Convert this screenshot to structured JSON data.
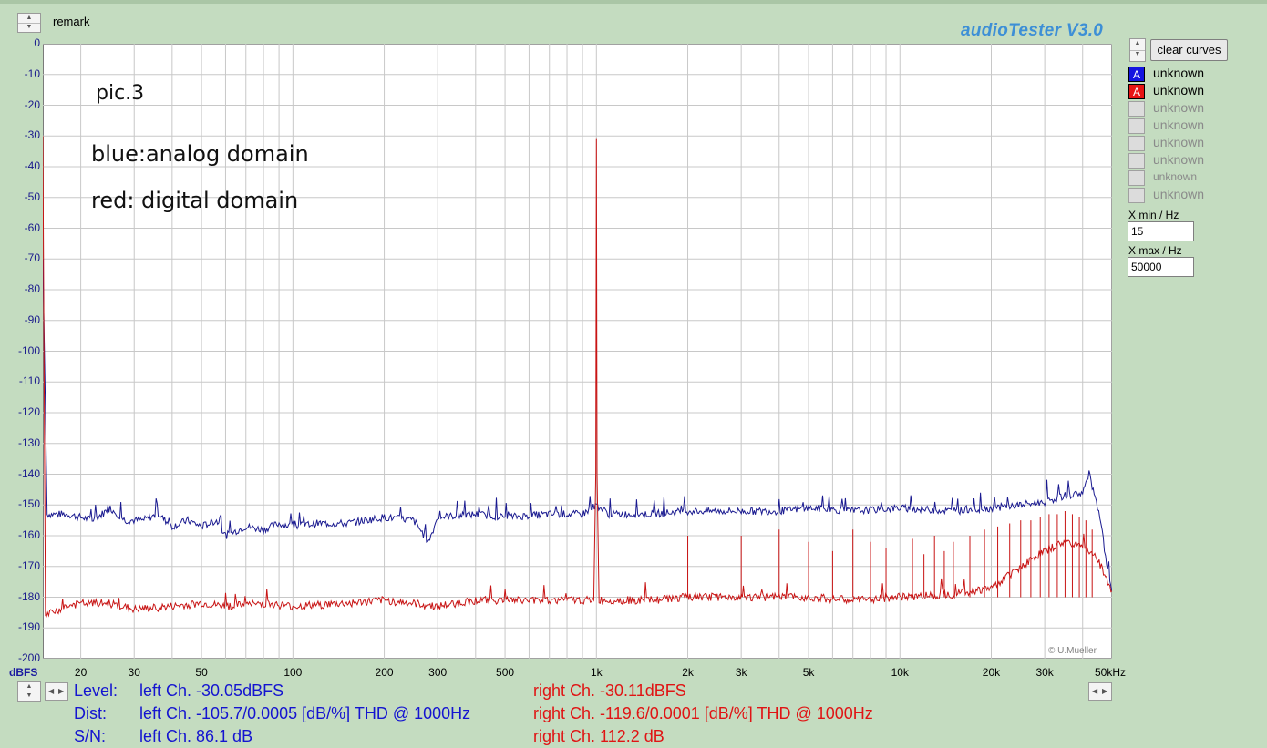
{
  "header": {
    "remark_label": "remark",
    "app_title": "audioTester  V3.0"
  },
  "annotations": {
    "line1": "pic.3",
    "line2": "blue:analog domain",
    "line3": "red: digital domain"
  },
  "right_panel": {
    "clear_button": "clear curves",
    "curves": [
      {
        "label": "unknown",
        "marker": "A",
        "color": "#1414e0",
        "active": true
      },
      {
        "label": "unknown",
        "marker": "A",
        "color": "#e81414",
        "active": true
      },
      {
        "label": "unknown",
        "marker": "",
        "active": false
      },
      {
        "label": "unknown",
        "marker": "",
        "active": false
      },
      {
        "label": "unknown",
        "marker": "",
        "active": false
      },
      {
        "label": "unknown",
        "marker": "",
        "active": false
      },
      {
        "label": "unknown",
        "marker": "",
        "active": false
      },
      {
        "label": "unknown",
        "marker": "",
        "active": false
      }
    ],
    "xmin_label": "X min / Hz",
    "xmin_value": "15",
    "xmax_label": "X max / Hz",
    "xmax_value": "50000"
  },
  "axes": {
    "y_unit": "dBFS",
    "x_unit": "50kHz",
    "copyright": "© U.Mueller",
    "y_ticks": [
      0,
      -10,
      -20,
      -30,
      -40,
      -50,
      -60,
      -70,
      -80,
      -90,
      -100,
      -110,
      -120,
      -130,
      -140,
      -150,
      -160,
      -170,
      -180,
      -190,
      -200
    ],
    "x_tick_labels": [
      {
        "f": 20,
        "label": "20"
      },
      {
        "f": 30,
        "label": "30"
      },
      {
        "f": 50,
        "label": "50"
      },
      {
        "f": 100,
        "label": "100"
      },
      {
        "f": 200,
        "label": "200"
      },
      {
        "f": 300,
        "label": "300"
      },
      {
        "f": 500,
        "label": "500"
      },
      {
        "f": 1000,
        "label": "1k"
      },
      {
        "f": 2000,
        "label": "2k"
      },
      {
        "f": 3000,
        "label": "3k"
      },
      {
        "f": 5000,
        "label": "5k"
      },
      {
        "f": 10000,
        "label": "10k"
      },
      {
        "f": 20000,
        "label": "20k"
      },
      {
        "f": 30000,
        "label": "30k"
      }
    ]
  },
  "chart_data": {
    "type": "line",
    "x_scale": "log",
    "xlim": [
      15,
      50000
    ],
    "ylim": [
      -200,
      0
    ],
    "grid": true,
    "series": [
      {
        "color": "#1a1a90",
        "points": [
          [
            15,
            -70
          ],
          [
            15.5,
            -153
          ],
          [
            18,
            -153
          ],
          [
            20,
            -154
          ],
          [
            22,
            -155
          ],
          [
            25,
            -151
          ],
          [
            28,
            -155
          ],
          [
            32,
            -155
          ],
          [
            36,
            -153
          ],
          [
            40,
            -157
          ],
          [
            45,
            -155
          ],
          [
            50,
            -157
          ],
          [
            56,
            -155
          ],
          [
            60,
            -160
          ],
          [
            70,
            -157
          ],
          [
            80,
            -158
          ],
          [
            90,
            -156
          ],
          [
            100,
            -157
          ],
          [
            120,
            -156
          ],
          [
            150,
            -156
          ],
          [
            200,
            -154
          ],
          [
            250,
            -155
          ],
          [
            280,
            -162
          ],
          [
            300,
            -154
          ],
          [
            400,
            -153
          ],
          [
            500,
            -154
          ],
          [
            700,
            -153
          ],
          [
            900,
            -153
          ],
          [
            1000,
            -150
          ],
          [
            1100,
            -153
          ],
          [
            1500,
            -153
          ],
          [
            2000,
            -152
          ],
          [
            2500,
            -152
          ],
          [
            3000,
            -152
          ],
          [
            4000,
            -152
          ],
          [
            5000,
            -151
          ],
          [
            7000,
            -152
          ],
          [
            10000,
            -151
          ],
          [
            15000,
            -152
          ],
          [
            20000,
            -151
          ],
          [
            25000,
            -150
          ],
          [
            30000,
            -149
          ],
          [
            35000,
            -147
          ],
          [
            40000,
            -146
          ],
          [
            42000,
            -140
          ],
          [
            44000,
            -148
          ],
          [
            46000,
            -156
          ],
          [
            48000,
            -170
          ],
          [
            50000,
            -178
          ]
        ]
      },
      {
        "color": "#c81414",
        "points": [
          [
            15,
            -30
          ],
          [
            15.3,
            -186
          ],
          [
            18,
            -183
          ],
          [
            20,
            -182
          ],
          [
            25,
            -182
          ],
          [
            30,
            -184
          ],
          [
            40,
            -183
          ],
          [
            50,
            -182
          ],
          [
            60,
            -183
          ],
          [
            80,
            -182
          ],
          [
            100,
            -183
          ],
          [
            150,
            -182
          ],
          [
            200,
            -181
          ],
          [
            300,
            -183
          ],
          [
            400,
            -181
          ],
          [
            500,
            -181
          ],
          [
            700,
            -181
          ],
          [
            900,
            -181
          ],
          [
            980,
            -181
          ],
          [
            995,
            -140
          ],
          [
            1000,
            -31
          ],
          [
            1005,
            -140
          ],
          [
            1020,
            -181
          ],
          [
            1500,
            -181
          ],
          [
            2000,
            -180
          ],
          [
            3000,
            -180
          ],
          [
            5000,
            -180
          ],
          [
            7000,
            -181
          ],
          [
            10000,
            -180
          ],
          [
            15000,
            -179
          ],
          [
            20000,
            -177
          ],
          [
            25000,
            -170
          ],
          [
            30000,
            -165
          ],
          [
            35000,
            -162
          ],
          [
            40000,
            -163
          ],
          [
            45000,
            -168
          ],
          [
            50000,
            -178
          ]
        ]
      }
    ],
    "harmonic_spikes": [
      {
        "f": 2000,
        "level": -160
      },
      {
        "f": 3000,
        "level": -160
      },
      {
        "f": 4000,
        "level": -158
      },
      {
        "f": 5000,
        "level": -162
      },
      {
        "f": 6000,
        "level": -165
      },
      {
        "f": 7000,
        "level": -158
      },
      {
        "f": 8000,
        "level": -162
      },
      {
        "f": 9000,
        "level": -164
      },
      {
        "f": 11000,
        "level": -161
      },
      {
        "f": 12000,
        "level": -166
      },
      {
        "f": 13000,
        "level": -160
      },
      {
        "f": 14000,
        "level": -165
      },
      {
        "f": 15000,
        "level": -162
      },
      {
        "f": 17000,
        "level": -160
      },
      {
        "f": 19000,
        "level": -158
      },
      {
        "f": 21000,
        "level": -157
      },
      {
        "f": 23000,
        "level": -156
      },
      {
        "f": 25000,
        "level": -155
      },
      {
        "f": 27000,
        "level": -155
      },
      {
        "f": 29000,
        "level": -154
      },
      {
        "f": 31000,
        "level": -153
      },
      {
        "f": 33000,
        "level": -153
      },
      {
        "f": 35000,
        "level": -152
      },
      {
        "f": 37000,
        "level": -153
      },
      {
        "f": 39000,
        "level": -154
      },
      {
        "f": 41000,
        "level": -155
      },
      {
        "f": 43000,
        "level": -158
      }
    ]
  },
  "stats": {
    "level_label": "Level:",
    "dist_label": "Dist:",
    "sn_label": "S/N:",
    "level_left": "left Ch. -30.05dBFS",
    "level_right": "right Ch. -30.11dBFS",
    "dist_left": "left Ch. -105.7/0.0005 [dB/%] THD @ 1000Hz",
    "dist_right": "right Ch. -119.6/0.0001 [dB/%] THD @ 1000Hz",
    "sn_left": "left Ch. 86.1 dB",
    "sn_right": "right Ch. 112.2 dB"
  }
}
